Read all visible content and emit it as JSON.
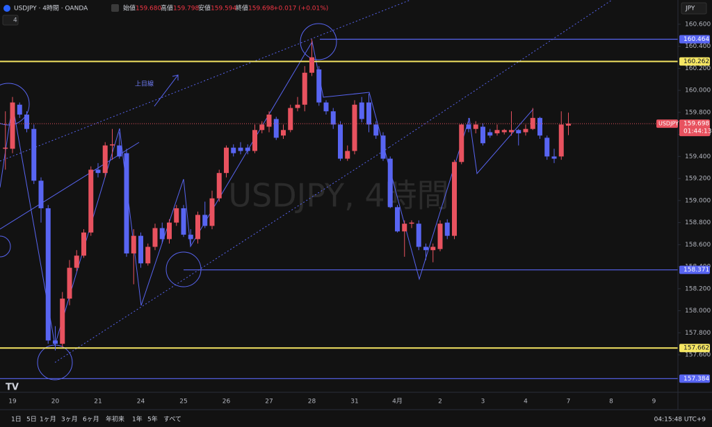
{
  "chart_data": {
    "type": "candlestick",
    "title": "USDJPY · 4時間 · OANDA",
    "symbol": "USDJPY",
    "quote": [
      {
        "name": "始値",
        "text": "159.680"
      },
      {
        "name": "高値",
        "text": "159.798"
      },
      {
        "name": "安値",
        "text": "159.594"
      },
      {
        "name": "終値",
        "text": "159.698"
      }
    ],
    "change": "+0.017 (+0.01%)",
    "indicator_count": "4",
    "currency": "JPY",
    "watermark": "USDJPY, 4時間",
    "annotation": "上目線",
    "up_color": "#e8525f",
    "down_color": "#5865f2",
    "grid": false,
    "categories": [
      null,
      "19",
      null,
      null,
      null,
      null,
      null,
      "20",
      null,
      null,
      null,
      null,
      null,
      "21",
      null,
      null,
      null,
      null,
      null,
      "24",
      null,
      null,
      null,
      null,
      null,
      "25",
      null,
      null,
      null,
      null,
      null,
      "26",
      null,
      null,
      null,
      null,
      null,
      "27",
      null,
      null,
      null,
      null,
      null,
      "28",
      null,
      null,
      null,
      null,
      null,
      "31",
      null,
      null,
      null,
      null,
      null,
      "4月",
      null,
      null,
      null,
      null,
      null,
      "2",
      null,
      null,
      null,
      null,
      null,
      "3",
      null,
      null,
      null,
      null,
      null,
      "4",
      null,
      null,
      null,
      null,
      null,
      "7",
      null,
      null,
      null,
      null,
      null,
      "8",
      null,
      null,
      null,
      null,
      null,
      "9"
    ],
    "open": [
      159.47,
      159.47,
      159.87,
      159.78,
      159.65,
      159.18,
      158.93,
      157.73,
      157.7,
      158.11,
      158.39,
      158.5,
      158.71,
      159.28,
      159.25,
      159.5,
      159.5,
      159.43,
      158.52,
      158.68,
      158.43,
      158.58,
      158.75,
      158.65,
      158.8,
      158.93,
      158.69,
      158.65,
      158.87,
      158.77,
      159.02,
      159.25,
      159.48,
      159.48,
      159.48,
      159.45,
      159.64,
      159.67,
      159.74,
      159.59,
      159.64,
      159.84,
      159.87,
      160.16,
      160.19,
      159.89,
      159.81,
      159.69,
      159.38,
      159.45,
      159.89,
      159.89,
      159.69,
      159.59,
      159.38,
      158.94,
      158.72,
      158.79,
      158.79,
      158.58,
      158.55,
      158.56,
      158.8,
      158.68,
      159.35,
      159.69,
      159.65,
      159.67,
      159.62,
      159.61,
      159.62,
      159.62,
      159.64,
      159.62,
      159.65,
      159.75,
      159.57,
      159.4,
      159.4,
      159.68,
      null,
      null,
      null,
      null,
      null,
      null,
      null,
      null,
      null,
      null,
      null,
      null
    ],
    "high": [
      159.81,
      159.94,
      159.89,
      159.81,
      159.69,
      159.21,
      158.96,
      157.86,
      158.17,
      158.46,
      158.55,
      158.74,
      159.31,
      159.34,
      159.53,
      159.65,
      159.62,
      159.47,
      158.74,
      158.71,
      158.61,
      158.79,
      158.8,
      158.83,
      158.96,
      158.96,
      158.74,
      158.9,
      158.99,
      159.09,
      159.28,
      159.5,
      159.51,
      159.53,
      159.51,
      159.69,
      159.72,
      159.81,
      159.76,
      159.69,
      159.87,
      159.94,
      160.22,
      160.464,
      160.22,
      159.91,
      159.84,
      159.72,
      159.5,
      159.91,
      159.94,
      159.97,
      159.72,
      159.62,
      159.4,
      158.96,
      158.82,
      158.82,
      158.82,
      158.61,
      158.61,
      158.82,
      158.83,
      159.37,
      159.7,
      159.75,
      159.72,
      159.7,
      159.65,
      159.69,
      159.65,
      159.81,
      159.65,
      159.69,
      159.84,
      159.76,
      159.59,
      159.47,
      159.81,
      159.798,
      null,
      null,
      null,
      null,
      null,
      null,
      null,
      null,
      null,
      null,
      null,
      null
    ],
    "low": [
      159.28,
      159.43,
      159.75,
      159.62,
      159.15,
      158.8,
      157.7,
      157.64,
      157.67,
      158.05,
      158.36,
      158.48,
      158.68,
      159.21,
      159.21,
      159.37,
      159.38,
      158.49,
      158.24,
      158.39,
      158.41,
      158.55,
      158.61,
      158.61,
      158.77,
      158.67,
      158.6,
      158.61,
      158.75,
      158.74,
      158.99,
      159.21,
      159.4,
      159.42,
      159.42,
      159.43,
      159.61,
      159.62,
      159.55,
      159.56,
      159.62,
      159.81,
      159.81,
      160.13,
      159.86,
      159.78,
      159.65,
      159.36,
      159.36,
      159.42,
      159.71,
      159.62,
      159.56,
      159.36,
      158.93,
      158.71,
      158.49,
      158.75,
      158.55,
      158.46,
      158.44,
      158.54,
      158.65,
      158.65,
      159.33,
      159.62,
      159.61,
      159.5,
      159.57,
      159.59,
      159.6,
      159.59,
      159.5,
      159.59,
      159.64,
      159.56,
      159.37,
      159.34,
      159.37,
      159.594,
      null,
      null,
      null,
      null,
      null,
      null,
      null,
      null,
      null,
      null,
      null,
      null
    ],
    "close": [
      159.48,
      159.89,
      159.78,
      159.65,
      159.18,
      158.93,
      157.73,
      157.7,
      158.11,
      158.39,
      158.5,
      158.71,
      159.28,
      159.25,
      159.5,
      159.51,
      159.4,
      158.52,
      158.68,
      158.43,
      158.58,
      158.75,
      158.65,
      158.8,
      158.93,
      158.69,
      158.65,
      158.87,
      158.77,
      159.02,
      159.25,
      159.48,
      159.43,
      159.45,
      159.45,
      159.64,
      159.69,
      159.78,
      159.57,
      159.64,
      159.84,
      159.87,
      160.16,
      160.3,
      159.89,
      159.81,
      159.69,
      159.38,
      159.45,
      159.87,
      159.74,
      159.69,
      159.59,
      159.38,
      158.94,
      158.72,
      158.79,
      158.8,
      158.58,
      158.55,
      158.58,
      158.79,
      158.68,
      159.35,
      159.69,
      159.65,
      159.69,
      159.52,
      159.59,
      159.64,
      159.64,
      159.64,
      159.61,
      159.65,
      159.75,
      159.59,
      159.4,
      159.38,
      159.69,
      159.698,
      null,
      null,
      null,
      null,
      null,
      null,
      null,
      null,
      null,
      null,
      null,
      null
    ],
    "ylim": [
      157.26,
      160.82
    ],
    "yticks": [
      {
        "value": 157.6,
        "label": "157.600"
      },
      {
        "value": 157.8,
        "label": "157.800"
      },
      {
        "value": 158.0,
        "label": "158.000"
      },
      {
        "value": 158.2,
        "label": "158.200"
      },
      {
        "value": 158.4,
        "label": "158.400"
      },
      {
        "value": 158.6,
        "label": "158.600"
      },
      {
        "value": 158.8,
        "label": "158.800"
      },
      {
        "value": 159.0,
        "label": "159.000"
      },
      {
        "value": 159.2,
        "label": "159.200"
      },
      {
        "value": 159.4,
        "label": "159.400"
      },
      {
        "value": 159.6,
        "label": "159.600"
      },
      {
        "value": 159.8,
        "label": "159.800"
      },
      {
        "value": 160.0,
        "label": "160.000"
      },
      {
        "value": 160.2,
        "label": "160.200"
      },
      {
        "value": 160.4,
        "label": "160.400"
      },
      {
        "value": 160.6,
        "label": "160.600"
      }
    ],
    "hlines": [
      {
        "value": 160.464,
        "color": "#5865f2"
      },
      {
        "value": 160.262,
        "color": "#f5e663"
      },
      {
        "value": 158.371,
        "color": "#5865f2"
      },
      {
        "value": 157.662,
        "color": "#f5e663"
      },
      {
        "value": 157.384,
        "color": "#5865f2"
      }
    ],
    "last_price": 159.698,
    "countdown": "01:44:13",
    "range_buttons": [
      "1日",
      "5日",
      "1ヶ月",
      "3ヶ月",
      "6ヶ月",
      "年初来",
      "1年",
      "5年",
      "すべて"
    ],
    "clock": "04:15:48 UTC+9"
  }
}
